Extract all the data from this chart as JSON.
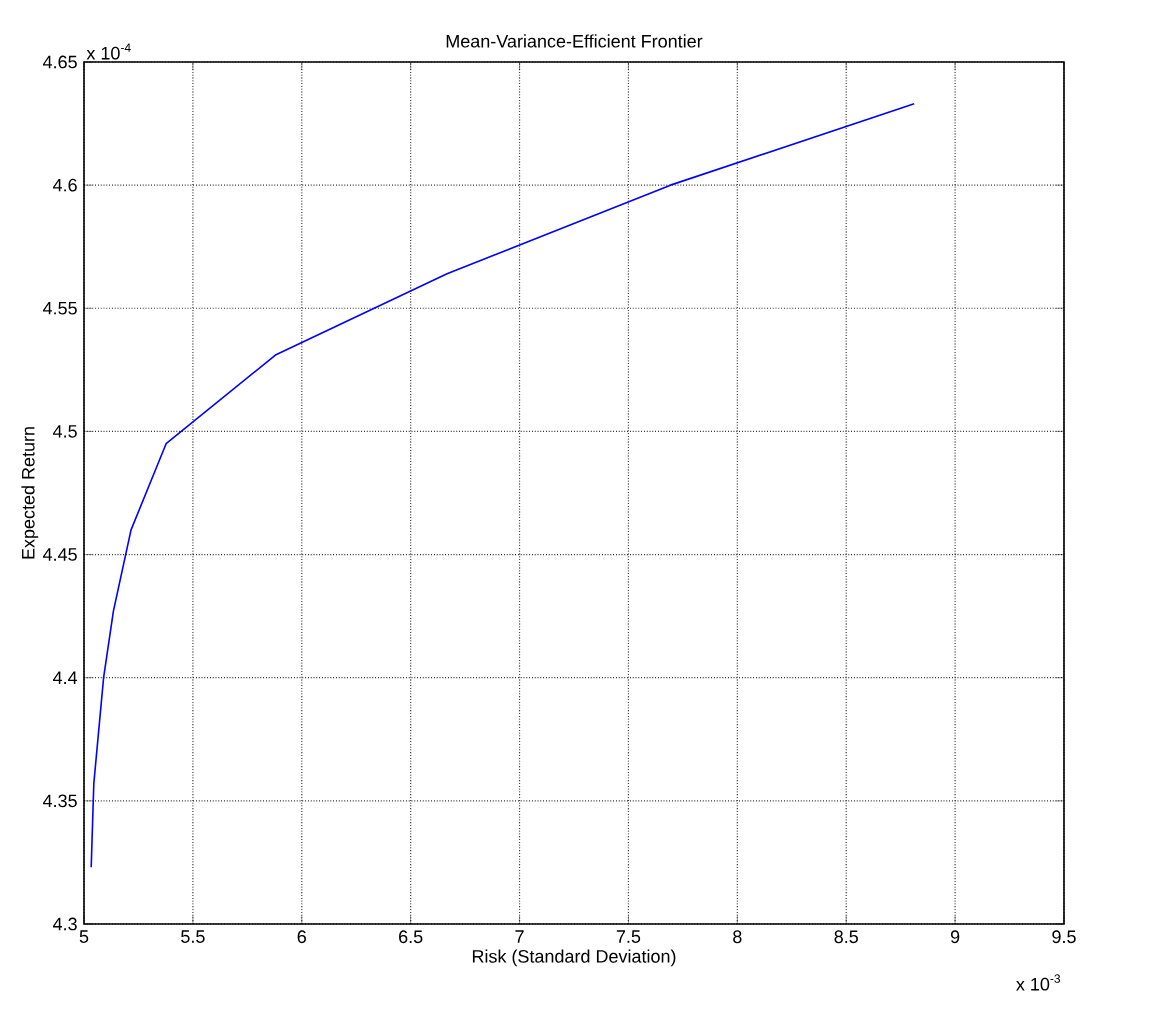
{
  "chart_data": {
    "type": "line",
    "title": "Mean-Variance-Efficient Frontier",
    "xlabel": "Risk (Standard Deviation)",
    "ylabel": "Expected Return",
    "annotations": [
      "x 10$^{-4}$",
      "x 10$^{-3}$"
    ],
    "x": [
      5.033,
      5.045,
      5.09,
      5.135,
      5.216,
      5.377,
      5.879,
      6.667,
      7.693,
      8.812
    ],
    "series": [
      {
        "color": "#0000ff",
        "values": [
          4.323,
          4.357,
          4.4,
          4.427,
          4.46,
          4.495,
          4.531,
          4.564,
          4.6,
          4.633
        ]
      }
    ],
    "xlim": [
      5,
      9.5
    ],
    "ylim": [
      4.3,
      4.65
    ],
    "xticks": [
      5,
      5.5,
      6,
      6.5,
      7,
      7.5,
      8,
      8.5,
      9,
      9.5
    ],
    "yticks": [
      4.3,
      4.35,
      4.4,
      4.45,
      4.5,
      4.55,
      4.6,
      4.65
    ],
    "grid": true,
    "line_style": "solid",
    "marker": "none"
  }
}
